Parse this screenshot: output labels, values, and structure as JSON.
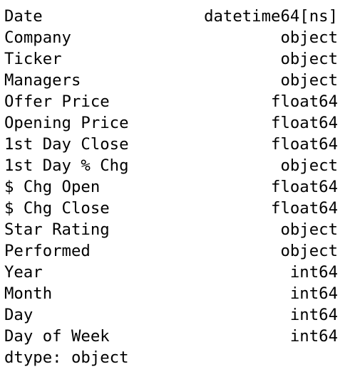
{
  "rows": [
    {
      "name": "Date",
      "dtype": "datetime64[ns]"
    },
    {
      "name": "Company",
      "dtype": "object"
    },
    {
      "name": "Ticker",
      "dtype": "object"
    },
    {
      "name": "Managers",
      "dtype": "object"
    },
    {
      "name": "Offer Price",
      "dtype": "float64"
    },
    {
      "name": "Opening Price",
      "dtype": "float64"
    },
    {
      "name": "1st Day Close",
      "dtype": "float64"
    },
    {
      "name": "1st Day % Chg",
      "dtype": "object"
    },
    {
      "name": "$ Chg Open",
      "dtype": "float64"
    },
    {
      "name": "$ Chg Close",
      "dtype": "float64"
    },
    {
      "name": "Star Rating",
      "dtype": "object"
    },
    {
      "name": "Performed",
      "dtype": "object"
    },
    {
      "name": "Year",
      "dtype": "int64"
    },
    {
      "name": "Month",
      "dtype": "int64"
    },
    {
      "name": "Day",
      "dtype": "int64"
    },
    {
      "name": "Day of Week",
      "dtype": "int64"
    }
  ],
  "footer": "dtype: object"
}
